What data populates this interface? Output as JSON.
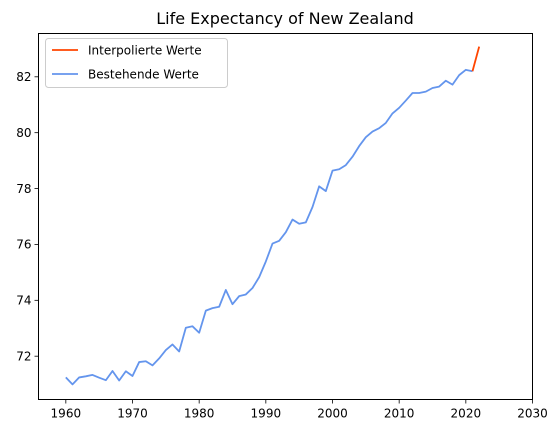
{
  "chart_data": {
    "type": "line",
    "title": "Life Expectancy of New Zealand",
    "xlabel": "",
    "ylabel": "",
    "xlim": [
      1955.9,
      2030
    ],
    "ylim": [
      70.45,
      83.55
    ],
    "xticks": [
      1960,
      1970,
      1980,
      1990,
      2000,
      2010,
      2020,
      2030
    ],
    "yticks": [
      72,
      74,
      76,
      78,
      80,
      82
    ],
    "grid": false,
    "legend_position": "top-left",
    "series": [
      {
        "name": "Interpolierte Werte",
        "color": "#ff4500",
        "x": [
          2021,
          2022
        ],
        "y": [
          82.2,
          83.08
        ]
      },
      {
        "name": "Bestehende Werte",
        "color": "#6495ed",
        "x": [
          1960,
          1961,
          1962,
          1963,
          1964,
          1965,
          1966,
          1967,
          1968,
          1969,
          1970,
          1971,
          1972,
          1973,
          1974,
          1975,
          1976,
          1977,
          1978,
          1979,
          1980,
          1981,
          1982,
          1983,
          1984,
          1985,
          1986,
          1987,
          1988,
          1989,
          1990,
          1991,
          1992,
          1993,
          1994,
          1995,
          1996,
          1997,
          1998,
          1999,
          2000,
          2001,
          2002,
          2003,
          2004,
          2005,
          2006,
          2007,
          2008,
          2009,
          2010,
          2011,
          2012,
          2013,
          2014,
          2015,
          2016,
          2017,
          2018,
          2019,
          2020,
          2021
        ],
        "y": [
          71.24,
          70.99,
          71.24,
          71.28,
          71.33,
          71.23,
          71.14,
          71.47,
          71.13,
          71.46,
          71.29,
          71.79,
          71.82,
          71.67,
          71.92,
          72.22,
          72.42,
          72.17,
          73.02,
          73.07,
          72.84,
          73.63,
          73.72,
          73.77,
          74.37,
          73.86,
          74.15,
          74.21,
          74.44,
          74.83,
          75.39,
          76.03,
          76.13,
          76.44,
          76.89,
          76.74,
          76.79,
          77.34,
          78.08,
          77.91,
          78.64,
          78.69,
          78.84,
          79.14,
          79.52,
          79.84,
          80.04,
          80.16,
          80.35,
          80.69,
          80.89,
          81.15,
          81.42,
          81.42,
          81.47,
          81.6,
          81.65,
          81.86,
          81.72,
          82.06,
          82.25,
          82.2
        ]
      }
    ]
  }
}
